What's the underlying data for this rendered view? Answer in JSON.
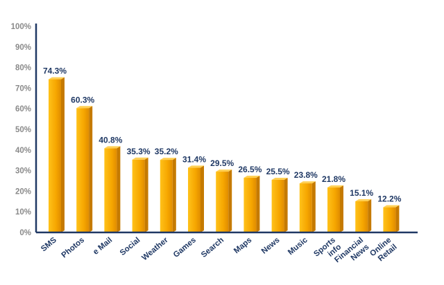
{
  "chart_data": {
    "type": "bar",
    "title": "",
    "xlabel": "",
    "ylabel": "",
    "ylim": [
      0,
      100
    ],
    "y_ticks": [
      "0%",
      "10%",
      "20%",
      "30%",
      "40%",
      "50%",
      "60%",
      "70%",
      "80%",
      "90%",
      "100%"
    ],
    "grid": false,
    "legend": "none",
    "bar_color": "#f5a300",
    "axis_color": "#1f3864",
    "label_color": "#1f3864",
    "tick_color": "#8a8a8a",
    "categories": [
      [
        "SMS"
      ],
      [
        "Photos"
      ],
      [
        "e Mail"
      ],
      [
        "Social"
      ],
      [
        "Weather"
      ],
      [
        "Games"
      ],
      [
        "Search"
      ],
      [
        "Maps"
      ],
      [
        "News"
      ],
      [
        "Music"
      ],
      [
        "Sports",
        "info"
      ],
      [
        "Financial",
        "News"
      ],
      [
        "Online",
        "Retail"
      ]
    ],
    "values": [
      74.3,
      60.3,
      40.8,
      35.3,
      35.2,
      31.4,
      29.5,
      26.5,
      25.5,
      23.8,
      21.8,
      15.1,
      12.2
    ],
    "value_labels": [
      "74.3%",
      "60.3%",
      "40.8%",
      "35.3%",
      "35.2%",
      "31.4%",
      "29.5%",
      "26.5%",
      "25.5%",
      "23.8%",
      "21.8%",
      "15.1%",
      "12.2%"
    ]
  }
}
